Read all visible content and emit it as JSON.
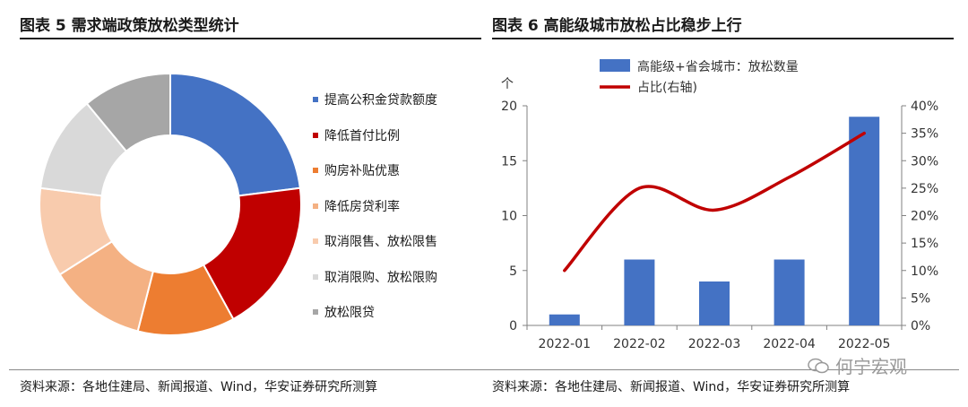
{
  "left_title": "图表 5  需求端政策放松类型统计",
  "right_title": "图表 6  高能级城市放松占比稳步上行",
  "left_source": "资料来源：各地住建局、新闻报道、Wind，华安证券研究所测算",
  "right_source": "资料来源：各地住建局、新闻报道、Wind，华安证券研究所测算",
  "watermark": "何宁宏观",
  "chart_data": [
    {
      "type": "pie",
      "subtype": "donut",
      "legend_position": "right",
      "slices": [
        {
          "label": "提高公积金贷款额度",
          "value": 23,
          "color": "#4472C4"
        },
        {
          "label": "降低首付比例",
          "value": 19,
          "color": "#C00000"
        },
        {
          "label": "购房补贴优惠",
          "value": 12,
          "color": "#ED7D31"
        },
        {
          "label": "降低房贷利率",
          "value": 12,
          "color": "#F4B183"
        },
        {
          "label": "取消限售、放松限售",
          "value": 11,
          "color": "#F8CBAD"
        },
        {
          "label": "取消限购、放松限购",
          "value": 12,
          "color": "#D9D9D9"
        },
        {
          "label": "放松限贷",
          "value": 11,
          "color": "#A6A6A6"
        }
      ]
    },
    {
      "type": "bar",
      "categories": [
        "2022-01",
        "2022-02",
        "2022-03",
        "2022-04",
        "2022-05"
      ],
      "series": [
        {
          "name": "高能级+省会城市：放松数量",
          "type": "bar",
          "axis": "left",
          "color": "#4472C4",
          "values": [
            1,
            6,
            4,
            6,
            19
          ]
        },
        {
          "name": "占比(右轴)",
          "type": "line",
          "axis": "right",
          "color": "#C00000",
          "values": [
            0.1,
            0.25,
            0.21,
            0.27,
            0.35
          ]
        }
      ],
      "ylabel": "个",
      "ylim": [
        0,
        20
      ],
      "yticks": [
        "0",
        "5",
        "10",
        "15",
        "20"
      ],
      "y2lim": [
        0,
        0.4
      ],
      "y2ticks": [
        "0%",
        "5%",
        "10%",
        "15%",
        "20%",
        "25%",
        "30%",
        "35%",
        "40%"
      ],
      "legend_position": "top",
      "grid": false
    }
  ]
}
